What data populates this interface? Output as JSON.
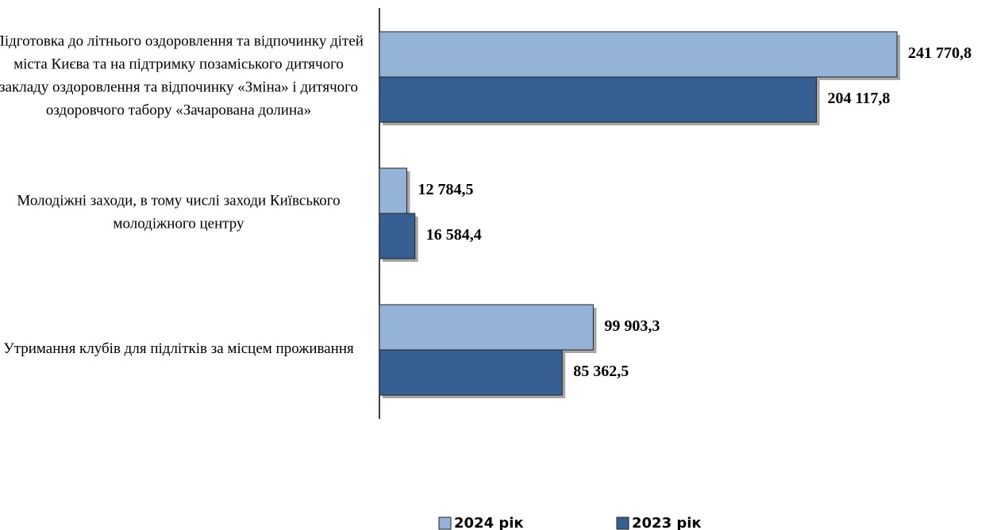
{
  "chart_data": {
    "type": "bar",
    "orientation": "horizontal",
    "categories": [
      "Підготовка до літнього оздоровлення та відпочинку дітей міста Києва та на підтримку позаміського дитячого закладу оздоровлення та відпочинку «Зміна» і дитячого оздоровчого табору «Зачарована долина»",
      "Молодіжні заходи, в тому числі заходи Київського молодіжного центру",
      "Утримання клубів для підлітків за місцем проживання"
    ],
    "series": [
      {
        "name": "2024 рік",
        "color": "#95b3d7",
        "values": [
          241770.8,
          12784.5,
          99903.3
        ],
        "value_labels": [
          "241 770,8",
          "12 784,5",
          "99 903,3"
        ]
      },
      {
        "name": "2023 рік",
        "color": "#376092",
        "values": [
          204117.8,
          16584.4,
          85362.5
        ],
        "value_labels": [
          "204 117,8",
          "16 584,4",
          "85 362,5"
        ]
      }
    ],
    "legend": "bottom"
  }
}
